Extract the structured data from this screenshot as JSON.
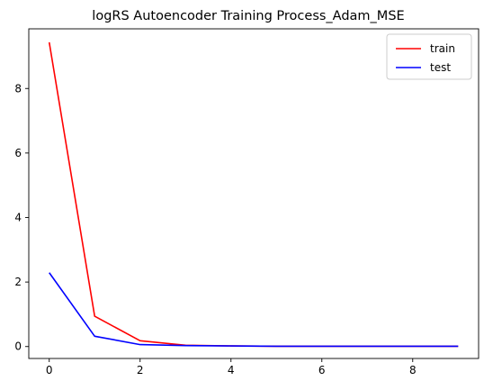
{
  "chart_data": {
    "type": "line",
    "title": "logRS Autoencoder Training Process_Adam_MSE",
    "xlabel": "",
    "ylabel": "",
    "x": [
      0,
      1,
      2,
      3,
      4,
      5,
      6,
      7,
      8,
      9
    ],
    "xlim": [
      -0.45,
      9.45
    ],
    "ylim": [
      -0.37,
      9.85
    ],
    "xticks": [
      0,
      2,
      4,
      6,
      8
    ],
    "yticks": [
      0,
      2,
      4,
      6,
      8
    ],
    "grid": false,
    "legend_position": "top-right",
    "series": [
      {
        "name": "train",
        "color": "#ff0000",
        "values": [
          9.43,
          0.94,
          0.18,
          0.04,
          0.02,
          0.01,
          0.01,
          0.01,
          0.01,
          0.01
        ]
      },
      {
        "name": "test",
        "color": "#0000ff",
        "values": [
          2.29,
          0.32,
          0.06,
          0.03,
          0.02,
          0.01,
          0.01,
          0.01,
          0.01,
          0.01
        ]
      }
    ]
  }
}
